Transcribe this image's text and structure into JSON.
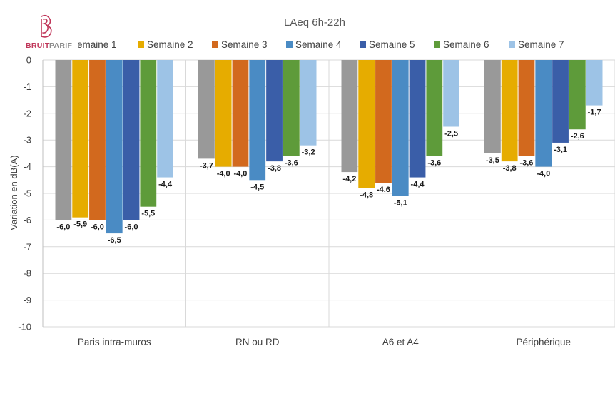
{
  "logo": {
    "text_bruit": "BRUIT",
    "text_parif": "PARIF"
  },
  "chart_data": {
    "type": "bar",
    "title": "LAeq 6h-22h",
    "ylabel": "Variation en dB(A)",
    "xlabel": "",
    "ylim": [
      -10,
      0
    ],
    "yticks": [
      0,
      -1,
      -2,
      -3,
      -4,
      -5,
      -6,
      -7,
      -8,
      -9,
      -10
    ],
    "grid": "horizontal",
    "legend_position": "top",
    "categories": [
      "Paris intra-muros",
      "RN ou RD",
      "A6 et A4",
      "Périphérique"
    ],
    "series": [
      {
        "name": "Semaine 1",
        "color": "#999999",
        "values": [
          -6.0,
          -3.7,
          -4.2,
          -3.5
        ],
        "labels": [
          "-6,0",
          "-3,7",
          "-4,2",
          "-3,5"
        ]
      },
      {
        "name": "Semaine 2",
        "color": "#e6ac00",
        "values": [
          -5.9,
          -4.0,
          -4.8,
          -3.8
        ],
        "labels": [
          "-5,9",
          "-4,0",
          "-4,8",
          "-3,8"
        ]
      },
      {
        "name": "Semaine 3",
        "color": "#d2691e",
        "values": [
          -6.0,
          -4.0,
          -4.6,
          -3.6
        ],
        "labels": [
          "-6,0",
          "-4,0",
          "-4,6",
          "-3,6"
        ]
      },
      {
        "name": "Semaine 4",
        "color": "#4a8bc4",
        "values": [
          -6.5,
          -4.5,
          -5.1,
          -4.0
        ],
        "labels": [
          "-6,5",
          "-4,5",
          "-5,1",
          "-4,0"
        ]
      },
      {
        "name": "Semaine 5",
        "color": "#3a5ea8",
        "values": [
          -6.0,
          -3.8,
          -4.4,
          -3.1
        ],
        "labels": [
          "-6,0",
          "-3,8",
          "-4,4",
          "-3,1"
        ]
      },
      {
        "name": "Semaine 6",
        "color": "#5e9b3a",
        "values": [
          -5.5,
          -3.6,
          -3.6,
          -2.6
        ],
        "labels": [
          "-5,5",
          "-3,6",
          "-3,6",
          "-2,6"
        ]
      },
      {
        "name": "Semaine 7",
        "color": "#9dc3e6",
        "values": [
          -4.4,
          -3.2,
          -2.5,
          -1.7
        ],
        "labels": [
          "-4,4",
          "-3,2",
          "-2,5",
          "-1,7"
        ]
      }
    ]
  }
}
